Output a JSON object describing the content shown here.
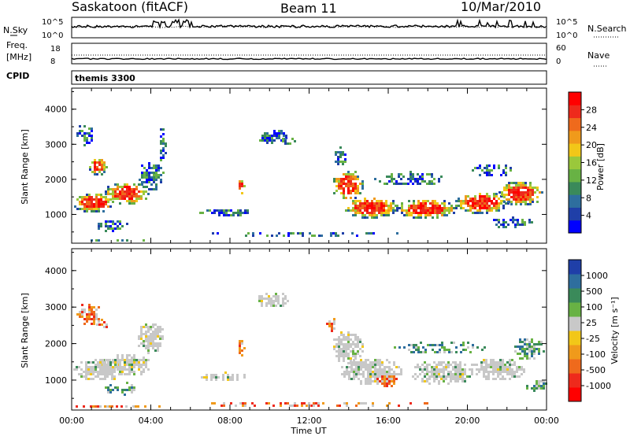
{
  "header": {
    "station": "Saskatoon (fitACF)",
    "beam": "Beam 11",
    "date": "10/Mar/2010"
  },
  "noise_panel": {
    "left_label": "N.Sky",
    "right_label": "N.Search",
    "left_ticks": [
      "10^5",
      "10^0"
    ],
    "right_ticks": [
      "10^5",
      "10^0"
    ]
  },
  "freq_panel": {
    "left_label_1": "Freq.",
    "left_label_2": "[MHz]",
    "right_label": "Nave",
    "left_ticks": [
      "18",
      "8"
    ],
    "right_ticks": [
      "60",
      "0"
    ]
  },
  "cpid_panel": {
    "label": "CPID",
    "value": "themis 3300"
  },
  "chart_data": [
    {
      "type": "heatmap",
      "name": "power",
      "ylabel": "Slant Range [km]",
      "xlabel": "Time UT",
      "xlim": [
        "00:00",
        "24:00"
      ],
      "ylim": [
        180,
        4600
      ],
      "x_ticks": [
        "00:00",
        "04:00",
        "08:00",
        "12:00",
        "16:00",
        "20:00",
        "00:00"
      ],
      "y_ticks": [
        "1000",
        "2000",
        "3000",
        "4000"
      ],
      "colorbar": {
        "label": "Power [dB]",
        "ticks": [
          "4",
          "8",
          "12",
          "16",
          "20",
          "24",
          "28"
        ],
        "range": [
          0,
          30
        ],
        "colors": [
          "#0000ff",
          "#1f3fa8",
          "#2e6e9e",
          "#3a8a5a",
          "#68b244",
          "#9ac83b",
          "#f2c718",
          "#f09a1b",
          "#ef6a1c",
          "#ee2a1c",
          "#ff0000"
        ]
      }
    },
    {
      "type": "heatmap",
      "name": "velocity",
      "ylabel": "Slant Range [km]",
      "xlabel": "Time UT",
      "xlim": [
        "00:00",
        "24:00"
      ],
      "ylim": [
        180,
        4600
      ],
      "x_ticks": [
        "00:00",
        "04:00",
        "08:00",
        "12:00",
        "16:00",
        "20:00",
        "00:00"
      ],
      "y_ticks": [
        "1000",
        "2000",
        "3000",
        "4000"
      ],
      "colorbar": {
        "label": "Velocity [m s⁻¹]",
        "ticks": [
          "1000",
          "500",
          "100",
          "25",
          "-25",
          "-100",
          "-500",
          "-1000"
        ],
        "colors": [
          "#1f3fa8",
          "#2e6e9e",
          "#3a8a5a",
          "#68b244",
          "#c8c8c8",
          "#f2c718",
          "#f09a1b",
          "#ef6a1c",
          "#ee2a1c",
          "#ff0000"
        ]
      }
    }
  ],
  "x_axis": {
    "ticks": [
      "00:00",
      "04:00",
      "08:00",
      "12:00",
      "16:00",
      "20:00",
      "00:00"
    ],
    "label": "Time UT"
  }
}
